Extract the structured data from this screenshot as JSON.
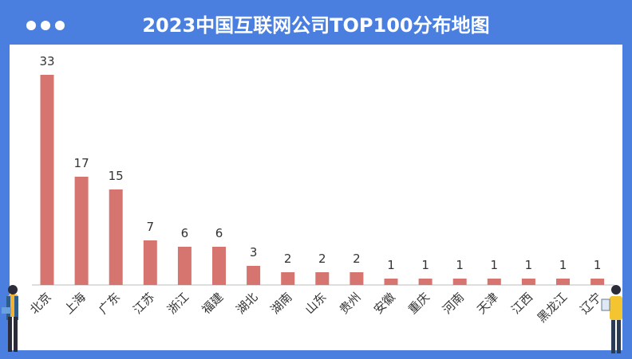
{
  "header": {
    "title": "2023中国互联网公司TOP100分布地图"
  },
  "colors": {
    "frame": "#4a7fe0",
    "bar": "#d6756f",
    "label": "#333333"
  },
  "chart_data": {
    "type": "bar",
    "title": "2023中国互联网公司TOP100分布地图",
    "categories": [
      "北京",
      "上海",
      "广东",
      "江苏",
      "浙江",
      "福建",
      "湖北",
      "湖南",
      "山东",
      "贵州",
      "安徽",
      "重庆",
      "河南",
      "天津",
      "江西",
      "黑龙江",
      "辽宁"
    ],
    "values": [
      33,
      17,
      15,
      7,
      6,
      6,
      3,
      2,
      2,
      2,
      1,
      1,
      1,
      1,
      1,
      1,
      1
    ],
    "ylim": [
      0,
      33
    ],
    "grid": false,
    "legend": "none"
  }
}
